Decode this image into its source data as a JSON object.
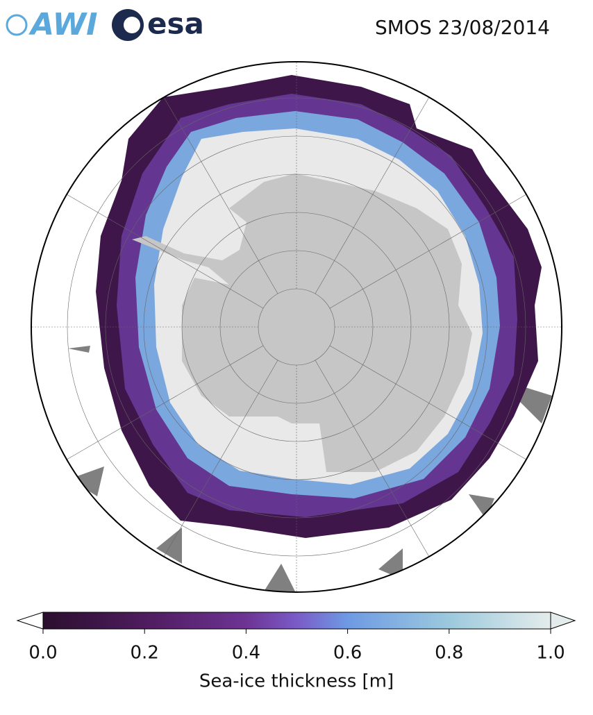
{
  "header": {
    "logo_awi": "AWI",
    "logo_esa": "esa",
    "title": "SMOS 23/08/2014"
  },
  "colorbar": {
    "range": [
      0,
      1
    ],
    "ticks": [
      {
        "value": 0,
        "label": "0.0"
      },
      0.2,
      0.4,
      0.6,
      0.8,
      {
        "value": 1,
        "label": "1.0"
      }
    ],
    "label": "Sea-ice thickness [m]"
  }
}
